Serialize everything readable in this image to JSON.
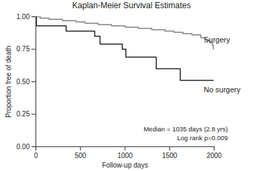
{
  "chart_data": {
    "type": "line",
    "title": "Kaplan-Meier Survival Estimates",
    "x_label": "Follow-up days",
    "y_label": "Proportion free of death",
    "line_style": "step",
    "xlim": [
      0,
      2000
    ],
    "xticks": [
      0,
      500,
      1000,
      1500,
      2000
    ],
    "ylim": [
      0,
      1
    ],
    "yticks": [
      {
        "value": 0,
        "label": "0.00"
      },
      {
        "value": 0.25,
        "label": "0.25"
      },
      {
        "value": 0.5,
        "label": "0.50"
      },
      {
        "value": 0.75,
        "label": "0.75"
      },
      {
        "value": 1,
        "label": "1.00"
      }
    ],
    "series": [
      {
        "name": "Surgery",
        "color": "#808080",
        "x": [
          0,
          50,
          150,
          300,
          450,
          550,
          700,
          850,
          1000,
          1150,
          1300,
          1450,
          1550,
          1650,
          1750,
          1850,
          1900,
          1950,
          1980,
          1990
        ],
        "values": [
          1.0,
          0.99,
          0.98,
          0.97,
          0.96,
          0.95,
          0.94,
          0.93,
          0.92,
          0.91,
          0.9,
          0.89,
          0.88,
          0.87,
          0.86,
          0.84,
          0.82,
          0.8,
          0.78,
          0.75
        ]
      },
      {
        "name": "No surgery",
        "color": "#222222",
        "x": [
          0,
          5,
          340,
          660,
          720,
          970,
          1010,
          1350,
          1620,
          1990
        ],
        "values": [
          1.0,
          0.93,
          0.89,
          0.85,
          0.79,
          0.75,
          0.69,
          0.6,
          0.51,
          0.51
        ]
      }
    ],
    "annotations": [
      "Median = 1035 days (2.8 yrs)",
      "Log rank p=0.009"
    ]
  }
}
